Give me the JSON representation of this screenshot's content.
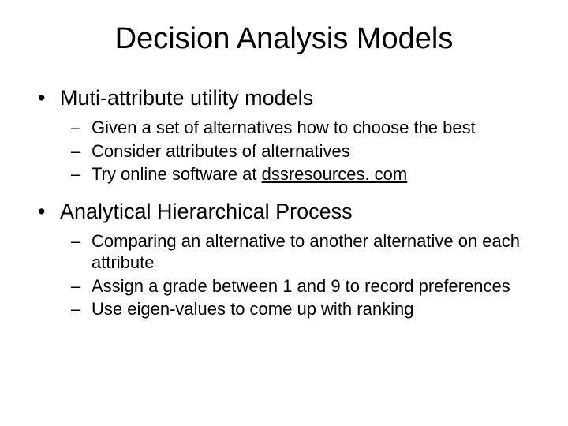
{
  "slide": {
    "title": "Decision Analysis Models",
    "background_color": "#ffffff",
    "text_color": "#000000",
    "title_fontsize": 38,
    "bullet_fontsize": 27,
    "subbullet_fontsize": 22,
    "font_family": "Arial",
    "bullets": [
      {
        "text": "Muti-attribute utility models",
        "sub": [
          {
            "text": "Given a set of alternatives how to choose the best"
          },
          {
            "text": "Consider attributes of alternatives"
          },
          {
            "prefix": "Try online software at ",
            "link": "dssresources. com"
          }
        ]
      },
      {
        "text": "Analytical Hierarchical Process",
        "sub": [
          {
            "text": "Comparing an alternative to another alternative on each attribute"
          },
          {
            "text": "Assign a grade between 1 and 9 to record preferences"
          },
          {
            "text": "Use eigen-values to come up with ranking"
          }
        ]
      }
    ]
  }
}
